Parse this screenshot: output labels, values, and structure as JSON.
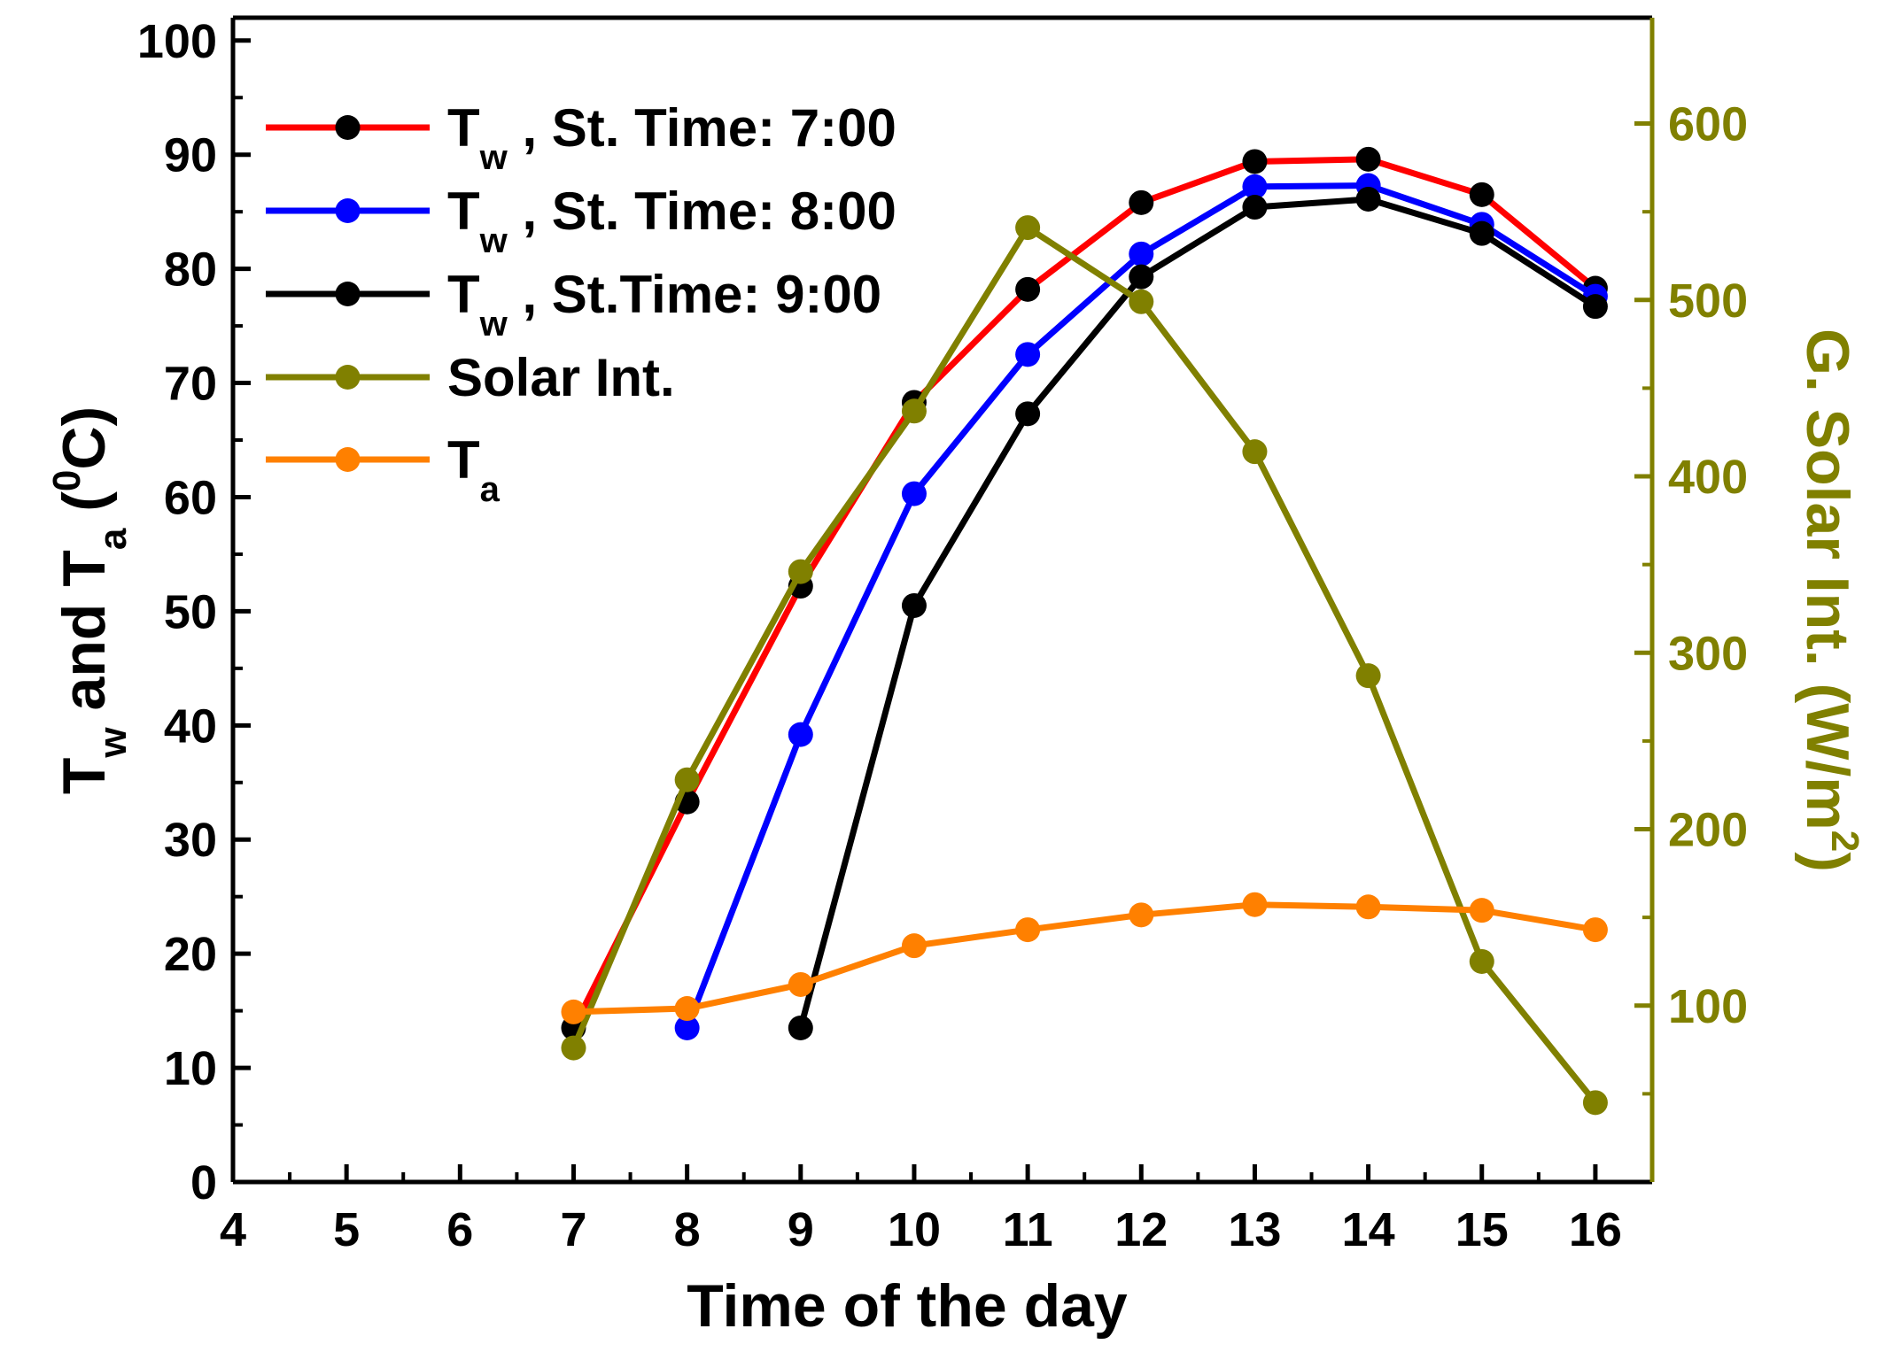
{
  "chart_data": {
    "type": "line",
    "x": [
      7,
      8,
      9,
      10,
      11,
      12,
      13,
      14,
      15,
      16
    ],
    "xlabel": "Time of the day",
    "xlim": [
      4,
      16.5
    ],
    "xticks": [
      "4",
      "5",
      "6",
      "7",
      "8",
      "9",
      "10",
      "11",
      "12",
      "13",
      "14",
      "15",
      "16"
    ],
    "ylabel": {
      "t1": "T",
      "s1": "w",
      "mid": " and T",
      "s2": "a",
      "paren": " (",
      "sup": "0",
      "end": "C)"
    },
    "ylim": [
      0,
      102
    ],
    "yticks": [
      "0",
      "10",
      "20",
      "30",
      "40",
      "50",
      "60",
      "70",
      "80",
      "90",
      "100"
    ],
    "y2label": {
      "main": "G. Solar Int. (W/m",
      "sup": "2",
      "end": ")"
    },
    "y2lim": [
      0,
      660
    ],
    "y2ticks": [
      "100",
      "200",
      "300",
      "400",
      "500",
      "600"
    ],
    "series": [
      {
        "name": "Tw , St. Time: 7:00",
        "legend_main": "T",
        "legend_sub": "w",
        "legend_rest": " , St. Time: 7:00",
        "axis": "left",
        "line_color": "#ff0000",
        "marker_color": "#000000",
        "x": [
          7,
          8,
          9,
          10,
          11,
          12,
          13,
          14,
          15,
          16
        ],
        "values": [
          13.5,
          33.3,
          52.2,
          68.3,
          78.2,
          85.8,
          89.4,
          89.6,
          86.5,
          78.3
        ]
      },
      {
        "name": "Tw , St. Time: 8:00",
        "legend_main": "T",
        "legend_sub": "w",
        "legend_rest": " , St. Time: 8:00",
        "axis": "left",
        "line_color": "#0000ff",
        "marker_color": "#0000ff",
        "x": [
          8,
          9,
          10,
          11,
          12,
          13,
          14,
          15,
          16
        ],
        "values": [
          13.5,
          39.2,
          60.3,
          72.5,
          81.3,
          87.2,
          87.3,
          83.9,
          77.6
        ]
      },
      {
        "name": "Tw , St.Time: 9:00",
        "legend_main": "T",
        "legend_sub": "w",
        "legend_rest": " , St.Time: 9:00",
        "axis": "left",
        "line_color": "#000000",
        "marker_color": "#000000",
        "x": [
          9,
          10,
          11,
          12,
          13,
          14,
          15,
          16
        ],
        "values": [
          13.5,
          50.5,
          67.3,
          79.3,
          85.4,
          86.1,
          83.1,
          76.7
        ]
      },
      {
        "name": "Solar Int.",
        "legend_main": "Solar Int.",
        "legend_sub": "",
        "legend_rest": "",
        "axis": "right",
        "line_color": "#808000",
        "marker_color": "#808000",
        "x": [
          7,
          8,
          9,
          10,
          11,
          12,
          13,
          14,
          15,
          16
        ],
        "values": [
          76,
          228,
          346,
          437,
          541,
          499,
          414,
          287,
          125,
          45
        ]
      },
      {
        "name": "Ta",
        "legend_main": "T",
        "legend_sub": "a",
        "legend_rest": "",
        "axis": "left",
        "line_color": "#ff8000",
        "marker_color": "#ff8000",
        "x": [
          7,
          8,
          9,
          10,
          11,
          12,
          13,
          14,
          15,
          16
        ],
        "values": [
          14.9,
          15.2,
          17.3,
          20.7,
          22.1,
          23.4,
          24.3,
          24.1,
          23.8,
          22.1
        ]
      }
    ],
    "legend_position": "top-left"
  }
}
